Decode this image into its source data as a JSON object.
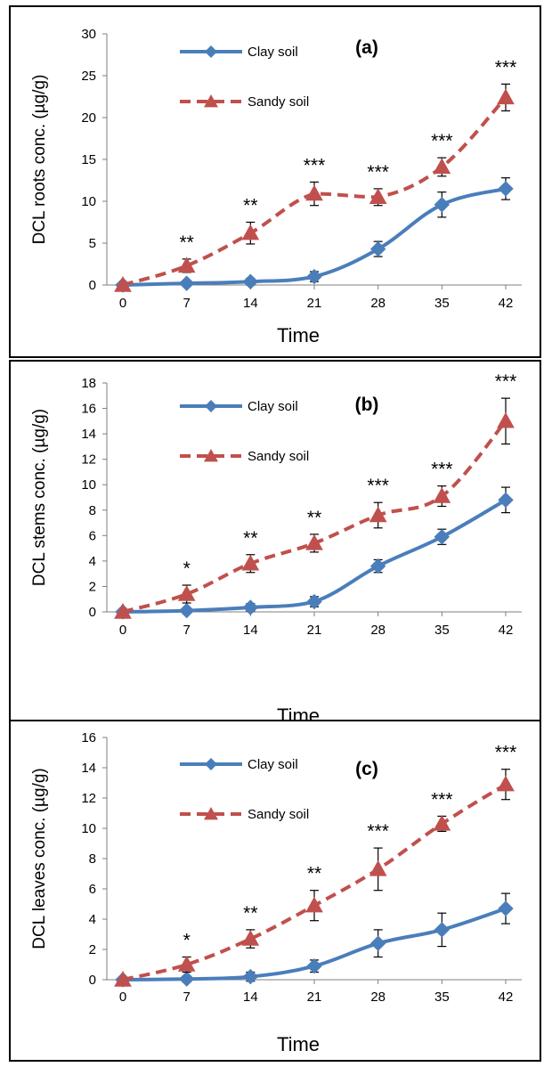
{
  "colors": {
    "clay": "#4a7ebb",
    "sandy": "#c0504d",
    "axis": "#7f7f7f",
    "text": "#000000"
  },
  "chart_data": [
    {
      "type": "line",
      "panel_label": "(a)",
      "ylabel": "DCL roots conc. (µg/g)",
      "xlabel": "Time",
      "x": [
        0,
        7,
        14,
        21,
        28,
        35,
        42
      ],
      "ylim": [
        0,
        30
      ],
      "yticks": [
        0,
        5,
        10,
        15,
        20,
        25,
        30
      ],
      "legend_position": "top-left",
      "series": [
        {
          "name": "Clay soil",
          "marker": "diamond",
          "line": "solid",
          "values": [
            0,
            0.2,
            0.4,
            1.0,
            4.3,
            9.6,
            11.5
          ],
          "errors": [
            0,
            0.3,
            0.4,
            0.6,
            0.9,
            1.5,
            1.3
          ]
        },
        {
          "name": "Sandy soil",
          "marker": "triangle",
          "line": "dashed",
          "values": [
            0,
            2.3,
            6.2,
            10.9,
            10.5,
            14.1,
            22.4
          ],
          "errors": [
            0,
            0.8,
            1.3,
            1.4,
            1.0,
            1.1,
            1.6
          ]
        }
      ],
      "annotations": [
        "",
        "**",
        "**",
        "***",
        "***",
        "***",
        "***"
      ]
    },
    {
      "type": "line",
      "panel_label": "(b)",
      "ylabel": "DCL stems conc. (µg/g)",
      "xlabel": "Time",
      "x": [
        0,
        7,
        14,
        21,
        28,
        35,
        42
      ],
      "ylim": [
        0,
        18
      ],
      "yticks": [
        0,
        2,
        4,
        6,
        8,
        10,
        12,
        14,
        16,
        18
      ],
      "legend_position": "top-left",
      "series": [
        {
          "name": "Clay soil",
          "marker": "diamond",
          "line": "solid",
          "values": [
            0,
            0.1,
            0.35,
            0.8,
            3.6,
            5.9,
            8.8
          ],
          "errors": [
            0,
            0.2,
            0.3,
            0.4,
            0.5,
            0.6,
            1.0
          ]
        },
        {
          "name": "Sandy soil",
          "marker": "triangle",
          "line": "dashed",
          "values": [
            0,
            1.4,
            3.8,
            5.4,
            7.6,
            9.1,
            15.0
          ],
          "errors": [
            0,
            0.7,
            0.7,
            0.7,
            1.0,
            0.8,
            1.8
          ]
        }
      ],
      "annotations": [
        "",
        "*",
        "**",
        "**",
        "***",
        "***",
        "***"
      ]
    },
    {
      "type": "line",
      "panel_label": "(c)",
      "ylabel": "DCL leaves conc. (µg/g)",
      "xlabel": "Time",
      "x": [
        0,
        7,
        14,
        21,
        28,
        35,
        42
      ],
      "ylim": [
        0,
        16
      ],
      "yticks": [
        0,
        2,
        4,
        6,
        8,
        10,
        12,
        14,
        16
      ],
      "legend_position": "top-left",
      "series": [
        {
          "name": "Clay soil",
          "marker": "diamond",
          "line": "solid",
          "values": [
            0,
            0.05,
            0.2,
            0.9,
            2.4,
            3.3,
            4.7
          ],
          "errors": [
            0,
            0.2,
            0.3,
            0.4,
            0.9,
            1.1,
            1.0
          ]
        },
        {
          "name": "Sandy soil",
          "marker": "triangle",
          "line": "dashed",
          "values": [
            0,
            1.0,
            2.7,
            4.9,
            7.3,
            10.3,
            12.9
          ],
          "errors": [
            0,
            0.5,
            0.6,
            1.0,
            1.4,
            0.5,
            1.0
          ]
        }
      ],
      "annotations": [
        "",
        "*",
        "**",
        "**",
        "***",
        "***",
        "***"
      ]
    }
  ]
}
